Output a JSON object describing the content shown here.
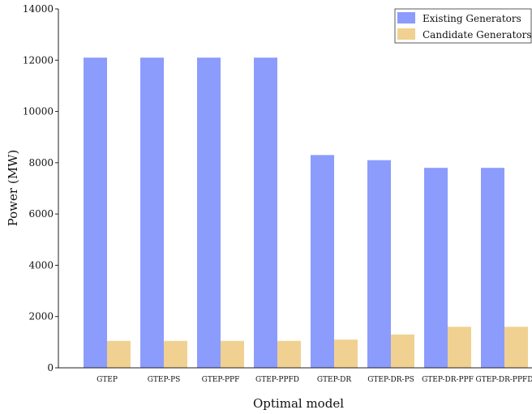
{
  "chart_data": {
    "type": "bar",
    "title": "",
    "xlabel": "Optimal model",
    "ylabel": "Power (MW)",
    "ylim": [
      0,
      14000
    ],
    "yticks": [
      0,
      2000,
      4000,
      6000,
      8000,
      10000,
      12000,
      14000
    ],
    "categories": [
      "GTEP",
      "GTEP-PS",
      "GTEP-PPF",
      "GTEP-PPFD",
      "GTEP-DR",
      "GTEP-DR-PS",
      "GTEP-DR-PPF",
      "GTEP-DR-PPFD"
    ],
    "series": [
      {
        "name": "Existing Generators",
        "color": "#8c9cfc",
        "values": [
          12100,
          12100,
          12100,
          12100,
          8300,
          8100,
          7800,
          7800
        ]
      },
      {
        "name": "Candidate Generators",
        "color": "#f1d191",
        "values": [
          1050,
          1050,
          1050,
          1050,
          1100,
          1300,
          1600,
          1600
        ]
      }
    ],
    "legend_position": "top-right",
    "grid": false
  }
}
